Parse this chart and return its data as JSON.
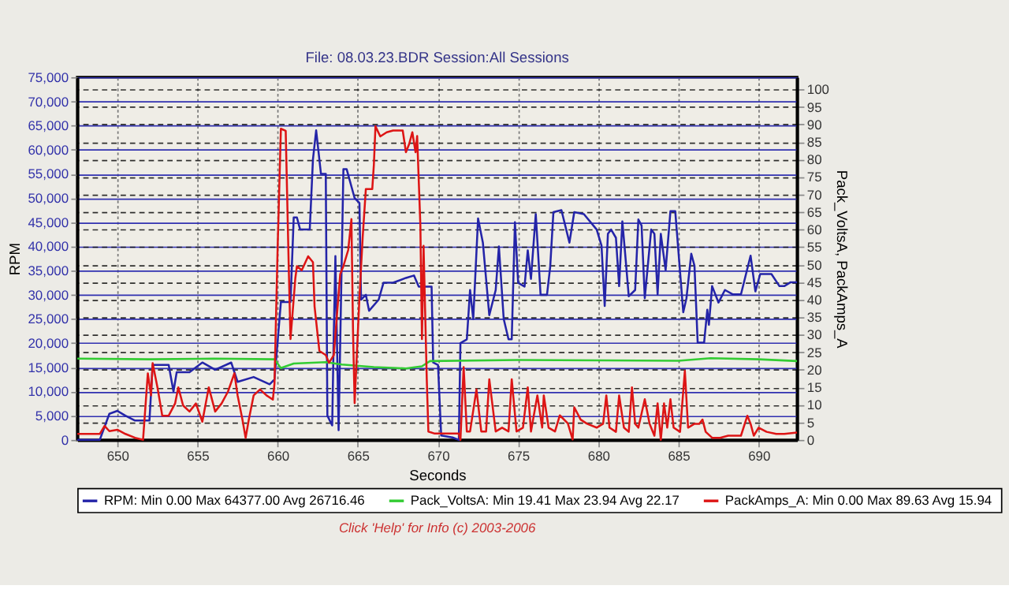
{
  "chart_data": {
    "type": "line",
    "title": "File: 08.03.23.BDR   Session:All Sessions",
    "xlabel": "Seconds",
    "ylabel": "RPM",
    "y2label": "Pack_VoltsA, PackAmps_A",
    "annotations": [
      "Click 'Help' for Info  (c) 2003-2006"
    ],
    "xlim": [
      647.5,
      692.4
    ],
    "xticks": [
      650,
      655,
      660,
      665,
      670,
      675,
      680,
      685,
      690
    ],
    "ylim": [
      0,
      75000
    ],
    "yticks": [
      0,
      {
        "value": 5000,
        "label": "5,000"
      },
      {
        "value": 10000,
        "label": "10,000"
      },
      {
        "value": 15000,
        "label": "15,000"
      },
      {
        "value": 20000,
        "label": "20,000"
      },
      {
        "value": 25000,
        "label": "25,000"
      },
      {
        "value": 30000,
        "label": "30,000"
      },
      {
        "value": 35000,
        "label": "35,000"
      },
      {
        "value": 40000,
        "label": "40,000"
      },
      {
        "value": 45000,
        "label": "45,000"
      },
      {
        "value": 50000,
        "label": "50,000"
      },
      {
        "value": 55000,
        "label": "55,000"
      },
      {
        "value": 60000,
        "label": "60,000"
      },
      {
        "value": 65000,
        "label": "65,000"
      },
      {
        "value": 70000,
        "label": "70,000"
      },
      {
        "value": 75000,
        "label": "75,000"
      }
    ],
    "y2lim": [
      0,
      103.5
    ],
    "y2ticks": [
      0,
      5,
      10,
      15,
      20,
      25,
      30,
      35,
      40,
      45,
      50,
      55,
      60,
      65,
      70,
      75,
      80,
      85,
      90,
      95,
      100
    ],
    "grid": true,
    "legend": "bottom",
    "line_style": "solid",
    "marker": "none",
    "series": [
      {
        "name": "RPM:  Min 0.00 Max 64377.00 Avg 26716.46",
        "color": "#2424a8",
        "x": [
          647.5,
          648.9,
          649.5,
          650.0,
          650.5,
          651.1,
          652.0,
          652.2,
          653.2,
          653.5,
          653.7,
          654.5,
          655.3,
          656.1,
          657.1,
          657.5,
          658.5,
          659.5,
          659.8,
          660.2,
          660.8,
          661.0,
          661.2,
          661.4,
          662.0,
          662.2,
          662.4,
          662.7,
          663.0,
          663.1,
          663.4,
          663.5,
          663.6,
          663.8,
          664.1,
          664.3,
          664.8,
          665.1,
          665.2,
          665.5,
          665.7,
          666.3,
          666.6,
          667.2,
          668.0,
          668.5,
          668.8,
          669.6,
          669.7,
          670.0,
          670.2,
          670.9,
          671.3,
          671.4,
          671.8,
          672.0,
          672.2,
          672.5,
          672.8,
          673.2,
          673.6,
          673.8,
          674.1,
          674.4,
          674.6,
          674.8,
          675.0,
          675.4,
          675.6,
          675.8,
          676.1,
          676.4,
          676.8,
          677.0,
          677.2,
          677.7,
          678.2,
          678.5,
          679.1,
          679.9,
          680.2,
          680.4,
          680.6,
          680.8,
          681.1,
          681.3,
          681.5,
          681.7,
          681.9,
          682.3,
          682.5,
          682.7,
          682.9,
          683.3,
          683.5,
          683.7,
          683.9,
          684.2,
          684.5,
          684.8,
          685.3,
          685.5,
          685.8,
          686.0,
          686.2,
          686.6,
          686.8,
          686.9,
          687.1,
          687.5,
          687.9,
          688.4,
          688.9,
          689.5,
          689.8,
          690.1,
          690.8,
          691.3,
          691.6,
          692.0,
          692.4
        ],
        "values": [
          0,
          0,
          5400,
          6000,
          5000,
          4000,
          4000,
          15500,
          15500,
          10000,
          14000,
          14000,
          16000,
          14500,
          16000,
          12000,
          13000,
          11500,
          12500,
          28500,
          28500,
          46000,
          46000,
          43500,
          43500,
          58000,
          64000,
          55000,
          55000,
          5000,
          3000,
          22000,
          38000,
          2000,
          56000,
          56000,
          50000,
          49000,
          29000,
          30000,
          26700,
          29000,
          32500,
          32500,
          33500,
          34000,
          31700,
          31700,
          16000,
          15500,
          900,
          500,
          0,
          20000,
          20800,
          31000,
          25000,
          45800,
          40800,
          25800,
          31000,
          40000,
          25000,
          20800,
          20800,
          45000,
          32500,
          31700,
          39200,
          33300,
          46700,
          30000,
          30000,
          35800,
          47100,
          47500,
          40800,
          47100,
          46700,
          43500,
          40200,
          27700,
          42600,
          43500,
          41800,
          31800,
          45200,
          37600,
          29700,
          31000,
          45600,
          44300,
          29300,
          43500,
          42600,
          30100,
          42600,
          35100,
          47300,
          47300,
          26400,
          29300,
          38500,
          36000,
          20100,
          20100,
          26900,
          23800,
          31800,
          28400,
          31000,
          30100,
          30100,
          38100,
          30700,
          34300,
          34300,
          31800,
          31800,
          32600,
          32600
        ]
      },
      {
        "name": "Pack_VoltsA:  Min 19.41 Max 23.94 Avg 22.17",
        "color": "#33cc33",
        "axis": "y2",
        "x": [
          647.5,
          652.0,
          656.0,
          659.8,
          660.2,
          661.0,
          663.0,
          664.0,
          666.0,
          668.0,
          669.0,
          669.5,
          675.0,
          680.0,
          685.0,
          687.0,
          690.0,
          692.4
        ],
        "values": [
          23.2,
          23.0,
          23.2,
          23.0,
          20.5,
          21.8,
          22.2,
          21.5,
          20.8,
          20.4,
          21.0,
          22.5,
          22.8,
          22.7,
          22.6,
          23.3,
          23.0,
          22.5
        ]
      },
      {
        "name": "PackAmps_A:  Min 0.00 Max 89.63 Avg 15.94",
        "color": "#dd1515",
        "axis": "y2",
        "x": [
          647.5,
          648.9,
          649.2,
          649.5,
          650.0,
          650.5,
          651.1,
          651.6,
          651.9,
          652.1,
          652.2,
          652.5,
          652.8,
          653.2,
          653.6,
          653.8,
          654.1,
          654.5,
          654.9,
          655.3,
          655.7,
          656.1,
          656.5,
          656.9,
          657.3,
          657.5,
          657.8,
          658.0,
          658.2,
          658.5,
          658.9,
          659.3,
          659.7,
          659.8,
          660.0,
          660.2,
          660.5,
          660.7,
          660.8,
          661.1,
          661.2,
          661.5,
          661.9,
          662.2,
          662.3,
          662.6,
          663.0,
          663.2,
          663.5,
          663.9,
          664.1,
          664.4,
          664.6,
          664.7,
          664.8,
          665.1,
          665.3,
          665.5,
          665.9,
          666.0,
          666.1,
          666.4,
          666.8,
          667.2,
          667.8,
          668.0,
          668.2,
          668.4,
          668.6,
          668.7,
          668.9,
          669.0,
          669.1,
          669.3,
          669.4,
          669.8,
          671.3,
          671.4,
          671.6,
          671.8,
          672.0,
          672.4,
          672.7,
          673.0,
          673.2,
          673.6,
          674.0,
          674.4,
          674.6,
          674.9,
          675.3,
          675.6,
          675.8,
          676.2,
          676.5,
          676.6,
          676.9,
          677.3,
          677.6,
          678.1,
          678.4,
          678.5,
          678.9,
          679.3,
          679.9,
          680.3,
          680.5,
          680.7,
          681.1,
          681.3,
          681.6,
          681.9,
          682.1,
          682.3,
          682.5,
          682.9,
          683.2,
          683.5,
          683.7,
          683.9,
          684.1,
          684.3,
          684.5,
          684.7,
          685.1,
          685.4,
          685.6,
          686.0,
          686.3,
          686.5,
          686.7,
          687.1,
          687.6,
          688.1,
          688.9,
          689.3,
          689.5,
          689.7,
          690.0,
          690.5,
          691.1,
          691.6,
          692.4
        ],
        "values": [
          1.7,
          1.7,
          4.0,
          2.5,
          2.9,
          1.7,
          0.6,
          0,
          19,
          12.7,
          21.9,
          15,
          6.9,
          6.9,
          10.4,
          15,
          9.8,
          8.1,
          10.4,
          5.2,
          15,
          8.1,
          10.4,
          13.8,
          19,
          12.7,
          5.8,
          0.6,
          5.8,
          12.7,
          14.4,
          12.7,
          11.5,
          16.1,
          55.4,
          88.8,
          88.2,
          47.3,
          28.8,
          46.1,
          49.6,
          48.4,
          52.4,
          50.7,
          38.1,
          25.4,
          24.2,
          22,
          24.2,
          47.3,
          49.6,
          54.2,
          63,
          31,
          10.5,
          40.6,
          57.7,
          71.6,
          71.6,
          78.5,
          89.5,
          86.6,
          87.8,
          88.3,
          88.3,
          82.1,
          84.4,
          87.8,
          82.1,
          86.7,
          61.3,
          28.8,
          55.4,
          17.3,
          2.4,
          1.8,
          1.8,
          0,
          20.8,
          2.4,
          2.4,
          14.4,
          2.4,
          2.4,
          17.3,
          2.4,
          3.5,
          2.4,
          17.3,
          2.4,
          3.5,
          15,
          2.4,
          12.7,
          3.5,
          12.7,
          3.5,
          2.4,
          7.0,
          4.7,
          0.1,
          9.3,
          5.8,
          4.6,
          3.5,
          4.6,
          12.7,
          3.5,
          2.3,
          12.7,
          3.5,
          2.3,
          15,
          4.6,
          3.5,
          11.6,
          4.6,
          1.2,
          10.4,
          0,
          10.4,
          3.5,
          11.6,
          3.5,
          2.3,
          19.7,
          3.5,
          4.6,
          4.6,
          5.8,
          2.3,
          0.6,
          0.6,
          1.2,
          1.2,
          6.9,
          4.6,
          1.2,
          3.5,
          2.3,
          1.7,
          1.7,
          2.1
        ]
      }
    ]
  }
}
